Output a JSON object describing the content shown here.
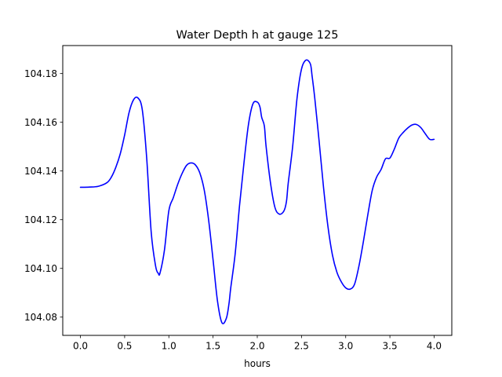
{
  "chart_data": {
    "type": "line",
    "title": "Water Depth h at gauge 125",
    "xlabel": "hours",
    "ylabel": "",
    "xlim": [
      -0.2,
      4.2
    ],
    "ylim": [
      104.0725,
      104.1915
    ],
    "xticks": [
      0.0,
      0.5,
      1.0,
      1.5,
      2.0,
      2.5,
      3.0,
      3.5,
      4.0
    ],
    "xtick_labels": [
      "0.0",
      "0.5",
      "1.0",
      "1.5",
      "2.0",
      "2.5",
      "3.0",
      "3.5",
      "4.0"
    ],
    "yticks": [
      104.08,
      104.1,
      104.12,
      104.14,
      104.16,
      104.18
    ],
    "ytick_labels": [
      "104.08",
      "104.10",
      "104.12",
      "104.14",
      "104.16",
      "104.18"
    ],
    "grid": false,
    "series": [
      {
        "color": "#0000ff",
        "x": [
          0.0,
          0.1,
          0.2,
          0.3,
          0.35,
          0.4,
          0.45,
          0.5,
          0.55,
          0.6,
          0.65,
          0.7,
          0.75,
          0.8,
          0.85,
          0.88,
          0.9,
          0.95,
          1.0,
          1.05,
          1.1,
          1.15,
          1.2,
          1.25,
          1.3,
          1.35,
          1.4,
          1.45,
          1.5,
          1.55,
          1.6,
          1.65,
          1.68,
          1.7,
          1.75,
          1.8,
          1.85,
          1.9,
          1.95,
          2.0,
          2.03,
          2.05,
          2.08,
          2.1,
          2.15,
          2.2,
          2.25,
          2.3,
          2.33,
          2.35,
          2.4,
          2.45,
          2.5,
          2.55,
          2.6,
          2.62,
          2.65,
          2.7,
          2.75,
          2.8,
          2.85,
          2.9,
          2.95,
          3.0,
          3.05,
          3.1,
          3.15,
          3.2,
          3.25,
          3.3,
          3.35,
          3.4,
          3.45,
          3.5,
          3.55,
          3.6,
          3.65,
          3.7,
          3.75,
          3.8,
          3.85,
          3.9,
          3.95,
          4.0
        ],
        "y": [
          104.1333,
          104.1334,
          104.1337,
          104.1352,
          104.1375,
          104.1415,
          104.147,
          104.1548,
          104.164,
          104.1692,
          104.17,
          104.165,
          104.145,
          104.115,
          104.101,
          104.098,
          104.0981,
          104.1075,
          104.1237,
          104.129,
          104.1345,
          104.139,
          104.1423,
          104.1433,
          104.1425,
          104.1392,
          104.1322,
          104.1198,
          104.1035,
          104.0866,
          104.0777,
          104.0795,
          104.0855,
          104.092,
          104.106,
          104.126,
          104.1435,
          104.159,
          104.1675,
          104.1683,
          104.1663,
          104.162,
          104.1585,
          104.15,
          104.135,
          104.125,
          104.1223,
          104.1235,
          104.1275,
          104.135,
          104.15,
          104.17,
          104.1818,
          104.1855,
          104.184,
          104.179,
          104.17,
          104.152,
          104.133,
          104.117,
          104.1055,
          104.0985,
          104.0945,
          104.092,
          104.0915,
          104.0935,
          104.101,
          104.111,
          104.122,
          104.132,
          104.1375,
          104.1406,
          104.145,
          104.1453,
          104.149,
          104.1535,
          104.1558,
          104.1576,
          104.1589,
          104.1591,
          104.1578,
          104.1553,
          104.153,
          104.153
        ]
      }
    ]
  }
}
